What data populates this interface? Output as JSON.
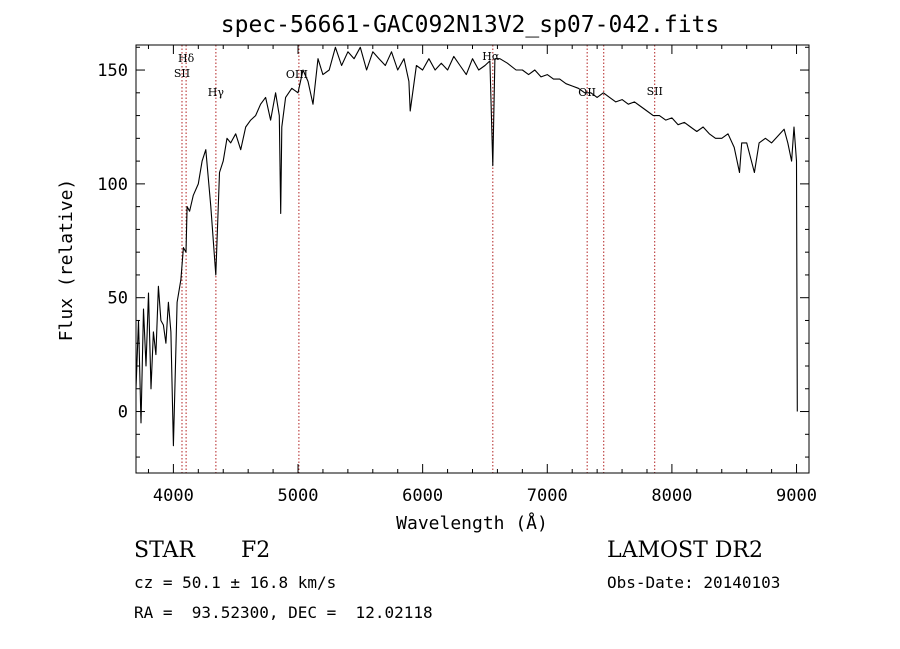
{
  "chart_data": {
    "type": "line",
    "title": "spec-56661-GAC092N13V2_sp07-042.fits",
    "xlabel": "Wavelength (Å)",
    "ylabel": "Flux (relative)",
    "xlim": [
      3700,
      9100
    ],
    "ylim": [
      -27,
      161
    ],
    "xticks": [
      4000,
      5000,
      6000,
      7000,
      8000,
      9000
    ],
    "yticks": [
      0,
      50,
      100,
      150
    ],
    "grid": false,
    "line_color": "#000000",
    "marker_color": "#b22222",
    "series": [
      {
        "x": [
          3700,
          3720,
          3740,
          3760,
          3780,
          3800,
          3820,
          3840,
          3860,
          3880,
          3900,
          3920,
          3940,
          3960,
          3980,
          4000,
          4030,
          4060,
          4080,
          4101,
          4110,
          4130,
          4160,
          4200,
          4230,
          4260,
          4300,
          4340,
          4370,
          4400,
          4430,
          4460,
          4500,
          4540,
          4580,
          4620,
          4660,
          4700,
          4740,
          4780,
          4820,
          4850,
          4861,
          4870,
          4900,
          4950,
          5000,
          5040,
          5080,
          5120,
          5160,
          5200,
          5250,
          5300,
          5350,
          5400,
          5450,
          5500,
          5550,
          5600,
          5650,
          5700,
          5750,
          5800,
          5850,
          5890,
          5900,
          5950,
          6000,
          6050,
          6100,
          6150,
          6200,
          6250,
          6300,
          6350,
          6400,
          6450,
          6500,
          6540,
          6563,
          6580,
          6620,
          6680,
          6750,
          6800,
          6850,
          6900,
          6950,
          7000,
          7050,
          7100,
          7150,
          7200,
          7250,
          7300,
          7350,
          7400,
          7450,
          7500,
          7550,
          7600,
          7650,
          7700,
          7750,
          7800,
          7850,
          7900,
          7950,
          8000,
          8050,
          8100,
          8150,
          8200,
          8250,
          8300,
          8350,
          8400,
          8450,
          8500,
          8542,
          8560,
          8600,
          8662,
          8700,
          8750,
          8800,
          8850,
          8900,
          8930,
          8960,
          8980,
          9000,
          9003,
          9006
        ],
        "y": [
          10,
          40,
          -5,
          45,
          20,
          52,
          10,
          35,
          25,
          55,
          40,
          38,
          30,
          48,
          35,
          -15,
          48,
          58,
          72,
          70,
          90,
          88,
          95,
          100,
          110,
          115,
          90,
          60,
          105,
          110,
          120,
          118,
          122,
          115,
          125,
          128,
          130,
          135,
          138,
          128,
          140,
          130,
          87,
          125,
          138,
          142,
          140,
          150,
          145,
          135,
          155,
          148,
          150,
          160,
          152,
          158,
          155,
          160,
          150,
          158,
          155,
          152,
          158,
          150,
          155,
          145,
          132,
          152,
          150,
          155,
          150,
          153,
          150,
          156,
          152,
          148,
          155,
          150,
          152,
          154,
          108,
          155,
          155,
          153,
          150,
          150,
          148,
          150,
          147,
          148,
          146,
          146,
          144,
          143,
          142,
          140,
          140,
          138,
          140,
          138,
          136,
          137,
          135,
          136,
          134,
          132,
          130,
          130,
          128,
          129,
          126,
          127,
          125,
          123,
          125,
          122,
          120,
          120,
          122,
          116,
          105,
          118,
          118,
          105,
          118,
          120,
          118,
          121,
          124,
          118,
          110,
          125,
          110,
          55,
          0
        ]
      }
    ],
    "line_markers": [
      {
        "label": "Hδ",
        "x": 4102
      },
      {
        "label": "SII",
        "x": 4069
      },
      {
        "label": "Hγ",
        "x": 4341
      },
      {
        "label": "OIII",
        "x": 5007
      },
      {
        "label": "Hα",
        "x": 6563
      },
      {
        "label": "OII",
        "x": 7320
      },
      {
        "label": "SII",
        "x": 7862
      }
    ],
    "extra_marker_x": [
      7453
    ]
  },
  "info": {
    "object_type": "STAR",
    "subclass": "F2",
    "survey": "LAMOST DR2",
    "redshift": "cz = 50.1 ± 16.8 km/s",
    "coordinates": "RA =  93.52300, DEC =  12.02118",
    "obs_date": "Obs-Date: 20140103"
  }
}
